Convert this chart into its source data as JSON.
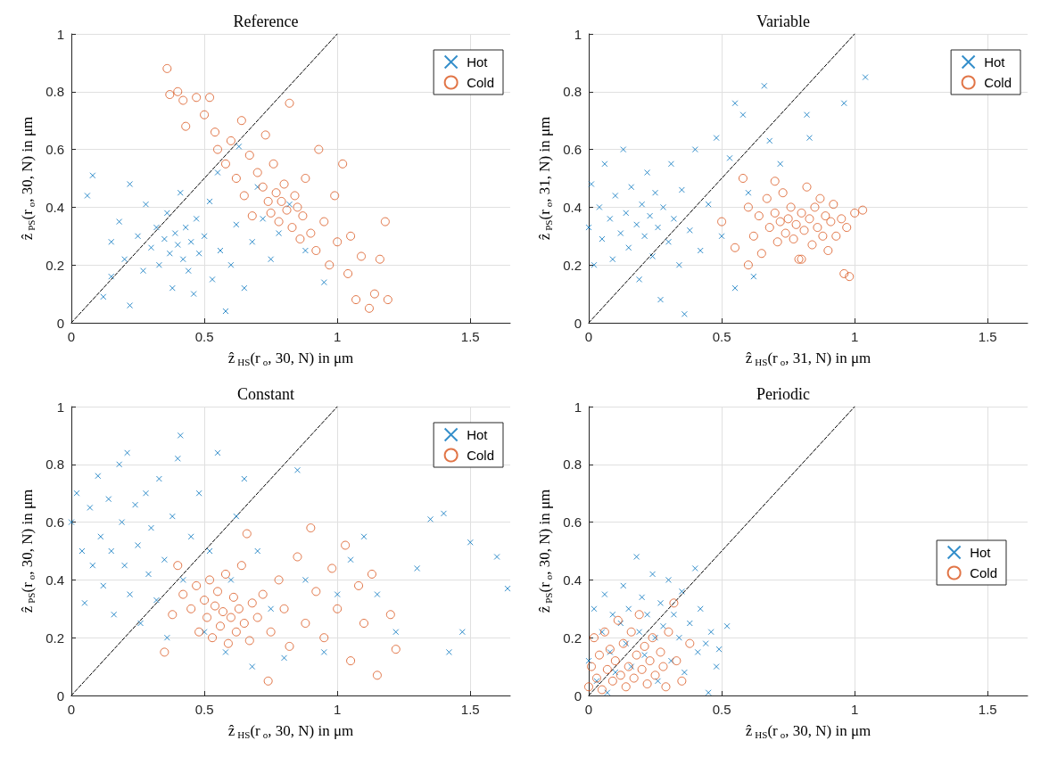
{
  "chart_data": [
    {
      "type": "scatter",
      "title": "Reference",
      "xlabel": "ẑ$_{HS}$(r$_{o}$, 30, N) in μm",
      "ylabel": "ẑ$_{PS}$(r$_{o}$, 30, N) in μm",
      "xlim": [
        0,
        1.65
      ],
      "xticks": [
        0,
        0.5,
        1,
        1.5
      ],
      "ylim": [
        0,
        1
      ],
      "yticks": [
        0,
        0.2,
        0.4,
        0.6,
        0.8,
        1
      ],
      "grid": true,
      "legend": "top right",
      "series": [
        {
          "name": "Hot",
          "color": "#0072bd",
          "marker": "cross",
          "x": [
            0.06,
            0.08,
            0.12,
            0.15,
            0.18,
            0.2,
            0.22,
            0.25,
            0.27,
            0.28,
            0.3,
            0.32,
            0.33,
            0.35,
            0.36,
            0.37,
            0.38,
            0.39,
            0.4,
            0.41,
            0.42,
            0.43,
            0.44,
            0.45,
            0.46,
            0.47,
            0.48,
            0.5,
            0.52,
            0.53,
            0.55,
            0.56,
            0.58,
            0.6,
            0.62,
            0.63,
            0.65,
            0.68,
            0.7,
            0.72,
            0.75,
            0.78,
            0.82,
            0.88,
            0.95,
            0.22,
            0.15
          ],
          "values": [
            0.44,
            0.51,
            0.09,
            0.28,
            0.35,
            0.22,
            0.48,
            0.3,
            0.18,
            0.41,
            0.26,
            0.33,
            0.2,
            0.29,
            0.38,
            0.24,
            0.12,
            0.31,
            0.27,
            0.45,
            0.22,
            0.33,
            0.18,
            0.28,
            0.1,
            0.36,
            0.24,
            0.3,
            0.42,
            0.15,
            0.52,
            0.25,
            0.04,
            0.2,
            0.34,
            0.61,
            0.12,
            0.28,
            0.47,
            0.36,
            0.22,
            0.31,
            0.41,
            0.25,
            0.14,
            0.06,
            0.16
          ]
        },
        {
          "name": "Cold",
          "color": "#d95319",
          "marker": "circle",
          "x": [
            0.36,
            0.37,
            0.4,
            0.42,
            0.43,
            0.47,
            0.5,
            0.52,
            0.54,
            0.55,
            0.58,
            0.6,
            0.62,
            0.64,
            0.65,
            0.67,
            0.68,
            0.7,
            0.72,
            0.73,
            0.74,
            0.75,
            0.76,
            0.77,
            0.78,
            0.79,
            0.8,
            0.81,
            0.82,
            0.83,
            0.84,
            0.85,
            0.86,
            0.87,
            0.88,
            0.9,
            0.92,
            0.93,
            0.95,
            0.97,
            0.99,
            1.0,
            1.02,
            1.04,
            1.05,
            1.07,
            1.09,
            1.12,
            1.14,
            1.16,
            1.18,
            1.19
          ],
          "values": [
            0.88,
            0.79,
            0.8,
            0.77,
            0.68,
            0.78,
            0.72,
            0.78,
            0.66,
            0.6,
            0.55,
            0.63,
            0.5,
            0.7,
            0.44,
            0.58,
            0.37,
            0.52,
            0.47,
            0.65,
            0.42,
            0.38,
            0.55,
            0.45,
            0.35,
            0.42,
            0.48,
            0.39,
            0.76,
            0.33,
            0.44,
            0.4,
            0.29,
            0.37,
            0.5,
            0.31,
            0.25,
            0.6,
            0.35,
            0.2,
            0.44,
            0.28,
            0.55,
            0.17,
            0.3,
            0.08,
            0.23,
            0.05,
            0.1,
            0.22,
            0.35,
            0.08
          ]
        },
        {
          "type": "line",
          "color": "#000000",
          "line_style": "dashed",
          "marker": "none",
          "x": [
            0,
            1
          ],
          "values": [
            0,
            1
          ]
        }
      ]
    },
    {
      "type": "scatter",
      "title": "Variable",
      "xlabel": "ẑ$_{HS}$(r$_{o}$, 31, N) in μm",
      "ylabel": "ẑ$_{PS}$(r$_{o}$, 31, N) in μm",
      "xlim": [
        0,
        1.65
      ],
      "xticks": [
        0,
        0.5,
        1,
        1.5
      ],
      "ylim": [
        0,
        1
      ],
      "yticks": [
        0,
        0.2,
        0.4,
        0.6,
        0.8,
        1
      ],
      "grid": true,
      "legend": "top right",
      "series": [
        {
          "name": "Hot",
          "color": "#0072bd",
          "marker": "cross",
          "x": [
            0.0,
            0.01,
            0.02,
            0.04,
            0.05,
            0.06,
            0.08,
            0.09,
            0.1,
            0.12,
            0.13,
            0.14,
            0.15,
            0.16,
            0.18,
            0.19,
            0.2,
            0.21,
            0.22,
            0.23,
            0.24,
            0.25,
            0.26,
            0.27,
            0.28,
            0.3,
            0.31,
            0.32,
            0.34,
            0.35,
            0.36,
            0.38,
            0.4,
            0.42,
            0.45,
            0.48,
            0.5,
            0.53,
            0.55,
            0.58,
            0.6,
            0.62,
            0.66,
            0.68,
            0.72,
            0.83,
            0.82,
            0.96,
            1.04,
            0.55
          ],
          "values": [
            0.33,
            0.48,
            0.2,
            0.4,
            0.29,
            0.55,
            0.36,
            0.22,
            0.44,
            0.31,
            0.6,
            0.38,
            0.26,
            0.47,
            0.34,
            0.15,
            0.41,
            0.3,
            0.52,
            0.37,
            0.23,
            0.45,
            0.33,
            0.08,
            0.4,
            0.28,
            0.55,
            0.36,
            0.2,
            0.46,
            0.03,
            0.32,
            0.6,
            0.25,
            0.41,
            0.64,
            0.3,
            0.57,
            0.76,
            0.72,
            0.45,
            0.16,
            0.82,
            0.63,
            0.55,
            0.64,
            0.72,
            0.76,
            0.85,
            0.12
          ]
        },
        {
          "name": "Cold",
          "color": "#d95319",
          "marker": "circle",
          "x": [
            0.5,
            0.55,
            0.58,
            0.6,
            0.62,
            0.64,
            0.65,
            0.67,
            0.68,
            0.7,
            0.71,
            0.72,
            0.73,
            0.74,
            0.75,
            0.76,
            0.77,
            0.78,
            0.79,
            0.8,
            0.81,
            0.82,
            0.83,
            0.84,
            0.85,
            0.86,
            0.87,
            0.88,
            0.89,
            0.9,
            0.91,
            0.92,
            0.93,
            0.95,
            0.96,
            0.97,
            0.98,
            1.0,
            1.03,
            0.6,
            0.7,
            0.8
          ],
          "values": [
            0.35,
            0.26,
            0.5,
            0.4,
            0.3,
            0.37,
            0.24,
            0.43,
            0.33,
            0.38,
            0.28,
            0.35,
            0.45,
            0.31,
            0.36,
            0.4,
            0.29,
            0.34,
            0.22,
            0.38,
            0.32,
            0.47,
            0.36,
            0.27,
            0.4,
            0.33,
            0.43,
            0.3,
            0.37,
            0.25,
            0.35,
            0.41,
            0.3,
            0.36,
            0.17,
            0.33,
            0.16,
            0.38,
            0.39,
            0.2,
            0.49,
            0.22
          ]
        },
        {
          "type": "line",
          "color": "#000000",
          "line_style": "dashed",
          "marker": "none",
          "x": [
            0,
            1
          ],
          "values": [
            0,
            1
          ]
        }
      ]
    },
    {
      "type": "scatter",
      "title": "Constant",
      "xlabel": "ẑ$_{HS}$(r$_{o}$, 30, N) in μm",
      "ylabel": "ẑ$_{PS}$(r$_{o}$, 30, N) in μm",
      "xlim": [
        0,
        1.65
      ],
      "xticks": [
        0,
        0.5,
        1,
        1.5
      ],
      "ylim": [
        0,
        1
      ],
      "yticks": [
        0,
        0.2,
        0.4,
        0.6,
        0.8,
        1
      ],
      "grid": true,
      "legend": "top right",
      "series": [
        {
          "name": "Hot",
          "color": "#0072bd",
          "marker": "cross",
          "x": [
            0.0,
            0.02,
            0.04,
            0.05,
            0.07,
            0.08,
            0.1,
            0.11,
            0.12,
            0.14,
            0.15,
            0.16,
            0.18,
            0.19,
            0.2,
            0.21,
            0.22,
            0.24,
            0.25,
            0.26,
            0.28,
            0.29,
            0.3,
            0.32,
            0.33,
            0.35,
            0.36,
            0.38,
            0.4,
            0.41,
            0.42,
            0.45,
            0.48,
            0.5,
            0.52,
            0.55,
            0.58,
            0.6,
            0.62,
            0.65,
            0.68,
            0.7,
            0.75,
            0.8,
            0.85,
            0.88,
            0.95,
            1.0,
            1.05,
            1.1,
            1.15,
            1.22,
            1.3,
            1.35,
            1.4,
            1.42,
            1.47,
            1.5,
            1.6,
            1.64
          ],
          "values": [
            0.6,
            0.7,
            0.5,
            0.32,
            0.65,
            0.45,
            0.76,
            0.55,
            0.38,
            0.68,
            0.5,
            0.28,
            0.8,
            0.6,
            0.45,
            0.84,
            0.35,
            0.66,
            0.52,
            0.25,
            0.7,
            0.42,
            0.58,
            0.33,
            0.75,
            0.47,
            0.2,
            0.62,
            0.82,
            0.9,
            0.4,
            0.55,
            0.7,
            0.22,
            0.5,
            0.84,
            0.15,
            0.4,
            0.62,
            0.75,
            0.1,
            0.5,
            0.3,
            0.13,
            0.78,
            0.4,
            0.15,
            0.35,
            0.47,
            0.55,
            0.35,
            0.22,
            0.44,
            0.61,
            0.63,
            0.15,
            0.22,
            0.53,
            0.48,
            0.37
          ]
        },
        {
          "name": "Cold",
          "color": "#d95319",
          "marker": "circle",
          "x": [
            0.35,
            0.38,
            0.4,
            0.42,
            0.45,
            0.47,
            0.48,
            0.5,
            0.51,
            0.52,
            0.53,
            0.54,
            0.55,
            0.56,
            0.57,
            0.58,
            0.59,
            0.6,
            0.61,
            0.62,
            0.63,
            0.64,
            0.65,
            0.66,
            0.67,
            0.68,
            0.7,
            0.72,
            0.74,
            0.75,
            0.78,
            0.8,
            0.82,
            0.85,
            0.88,
            0.9,
            0.92,
            0.95,
            0.98,
            1.0,
            1.03,
            1.05,
            1.08,
            1.1,
            1.13,
            1.15,
            1.2,
            1.22
          ],
          "values": [
            0.15,
            0.28,
            0.45,
            0.35,
            0.3,
            0.38,
            0.22,
            0.33,
            0.27,
            0.4,
            0.2,
            0.31,
            0.36,
            0.24,
            0.29,
            0.42,
            0.18,
            0.27,
            0.34,
            0.22,
            0.3,
            0.45,
            0.25,
            0.56,
            0.19,
            0.32,
            0.27,
            0.35,
            0.05,
            0.22,
            0.4,
            0.3,
            0.17,
            0.48,
            0.25,
            0.58,
            0.36,
            0.2,
            0.44,
            0.3,
            0.52,
            0.12,
            0.38,
            0.25,
            0.42,
            0.07,
            0.28,
            0.16
          ]
        },
        {
          "type": "line",
          "color": "#000000",
          "line_style": "dashed",
          "marker": "none",
          "x": [
            0,
            1
          ],
          "values": [
            0,
            1
          ]
        }
      ]
    },
    {
      "type": "scatter",
      "title": "Periodic",
      "xlabel": "ẑ$_{HS}$(r$_{o}$, 30, N) in μm",
      "ylabel": "ẑ$_{PS}$(r$_{o}$, 30, N) in μm",
      "xlim": [
        0,
        1.65
      ],
      "xticks": [
        0,
        0.5,
        1,
        1.5
      ],
      "ylim": [
        0,
        1
      ],
      "yticks": [
        0,
        0.2,
        0.4,
        0.6,
        0.8,
        1
      ],
      "grid": true,
      "legend": "right",
      "series": [
        {
          "name": "Hot",
          "color": "#0072bd",
          "marker": "cross",
          "x": [
            0.0,
            0.02,
            0.03,
            0.05,
            0.06,
            0.08,
            0.09,
            0.1,
            0.12,
            0.13,
            0.14,
            0.15,
            0.16,
            0.18,
            0.19,
            0.2,
            0.21,
            0.22,
            0.24,
            0.25,
            0.26,
            0.27,
            0.28,
            0.3,
            0.31,
            0.32,
            0.34,
            0.35,
            0.36,
            0.38,
            0.4,
            0.41,
            0.42,
            0.44,
            0.45,
            0.46,
            0.48,
            0.49,
            0.52,
            0.07
          ],
          "values": [
            0.12,
            0.3,
            0.05,
            0.22,
            0.35,
            0.15,
            0.28,
            0.08,
            0.25,
            0.38,
            0.18,
            0.3,
            0.1,
            0.48,
            0.22,
            0.34,
            0.14,
            0.28,
            0.42,
            0.2,
            0.05,
            0.32,
            0.24,
            0.4,
            0.12,
            0.28,
            0.2,
            0.36,
            0.08,
            0.25,
            0.44,
            0.15,
            0.3,
            0.18,
            0.01,
            0.22,
            0.1,
            0.16,
            0.24,
            0.01
          ]
        },
        {
          "name": "Cold",
          "color": "#d95319",
          "marker": "circle",
          "x": [
            0.0,
            0.01,
            0.02,
            0.03,
            0.04,
            0.05,
            0.06,
            0.07,
            0.08,
            0.09,
            0.1,
            0.11,
            0.12,
            0.13,
            0.14,
            0.15,
            0.16,
            0.17,
            0.18,
            0.19,
            0.2,
            0.21,
            0.22,
            0.23,
            0.24,
            0.25,
            0.27,
            0.28,
            0.3,
            0.32,
            0.33,
            0.35,
            0.38,
            0.29
          ],
          "values": [
            0.03,
            0.1,
            0.2,
            0.06,
            0.14,
            0.02,
            0.22,
            0.09,
            0.16,
            0.05,
            0.12,
            0.26,
            0.07,
            0.18,
            0.03,
            0.1,
            0.22,
            0.06,
            0.14,
            0.28,
            0.09,
            0.17,
            0.04,
            0.12,
            0.2,
            0.07,
            0.15,
            0.1,
            0.22,
            0.32,
            0.12,
            0.05,
            0.18,
            0.03
          ]
        },
        {
          "type": "line",
          "color": "#000000",
          "line_style": "dashed",
          "marker": "none",
          "x": [
            0,
            1
          ],
          "values": [
            0,
            1
          ]
        }
      ]
    }
  ]
}
